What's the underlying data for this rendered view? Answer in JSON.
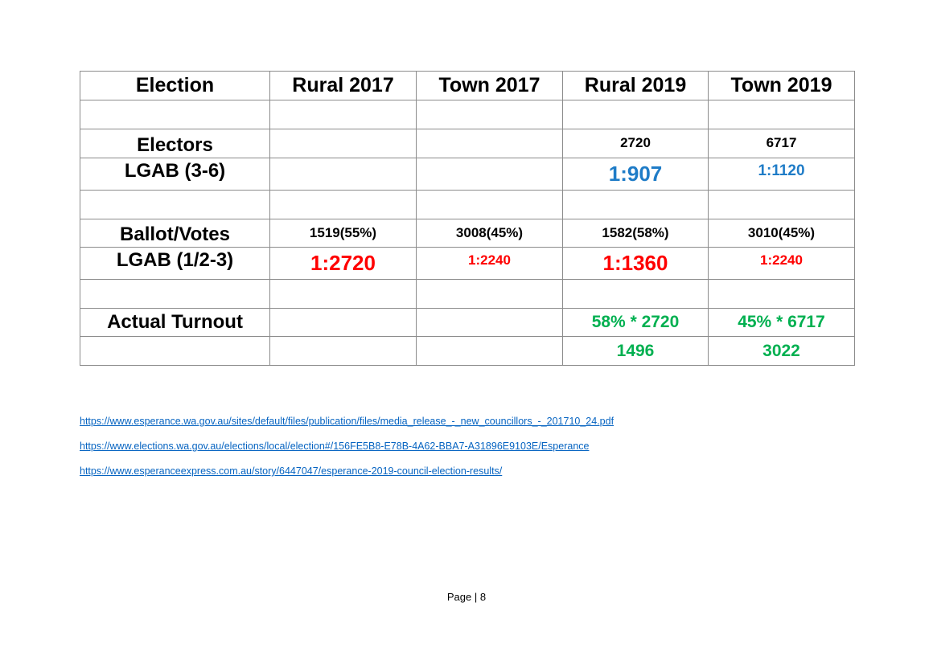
{
  "colors": {
    "blue": "#1f7cc7",
    "red": "#ff0000",
    "green": "#00b050",
    "link": "#0563c1",
    "border": "#8c8c8c"
  },
  "table": {
    "headers": [
      "Election",
      "Rural 2017",
      "Town 2017",
      "Rural 2019",
      "Town 2019"
    ],
    "rows": [
      {
        "label": "",
        "cells": [
          "",
          "",
          "",
          ""
        ]
      },
      {
        "label": "Electors",
        "cells": [
          "",
          "",
          "2720",
          "6717"
        ]
      },
      {
        "label": "LGAB (3-6)",
        "cells": [
          "",
          "",
          "1:907",
          "1:1120"
        ]
      },
      {
        "label": "",
        "cells": [
          "",
          "",
          "",
          ""
        ]
      },
      {
        "label": "Ballot/Votes",
        "cells": [
          "1519(55%)",
          "3008(45%)",
          "1582(58%)",
          "3010(45%)"
        ]
      },
      {
        "label": "LGAB (1/2-3)",
        "cells": [
          "1:2720",
          "1:2240",
          "1:1360",
          "1:2240"
        ]
      },
      {
        "label": "",
        "cells": [
          "",
          "",
          "",
          ""
        ]
      },
      {
        "label": "Actual Turnout",
        "cells": [
          "",
          "",
          "58% * 2720",
          "45% * 6717"
        ]
      },
      {
        "label": "",
        "cells": [
          "",
          "",
          "1496",
          "3022"
        ]
      }
    ]
  },
  "links": [
    "https://www.esperance.wa.gov.au/sites/default/files/publication/files/media_release_-_new_councillors_-_201710_24.pdf",
    "https://www.elections.wa.gov.au/elections/local/election#/156FE5B8-E78B-4A62-BBA7-A31896E9103E/Esperance",
    "https://www.esperanceexpress.com.au/story/6447047/esperance-2019-council-election-results/"
  ],
  "footer": "Page | 8"
}
